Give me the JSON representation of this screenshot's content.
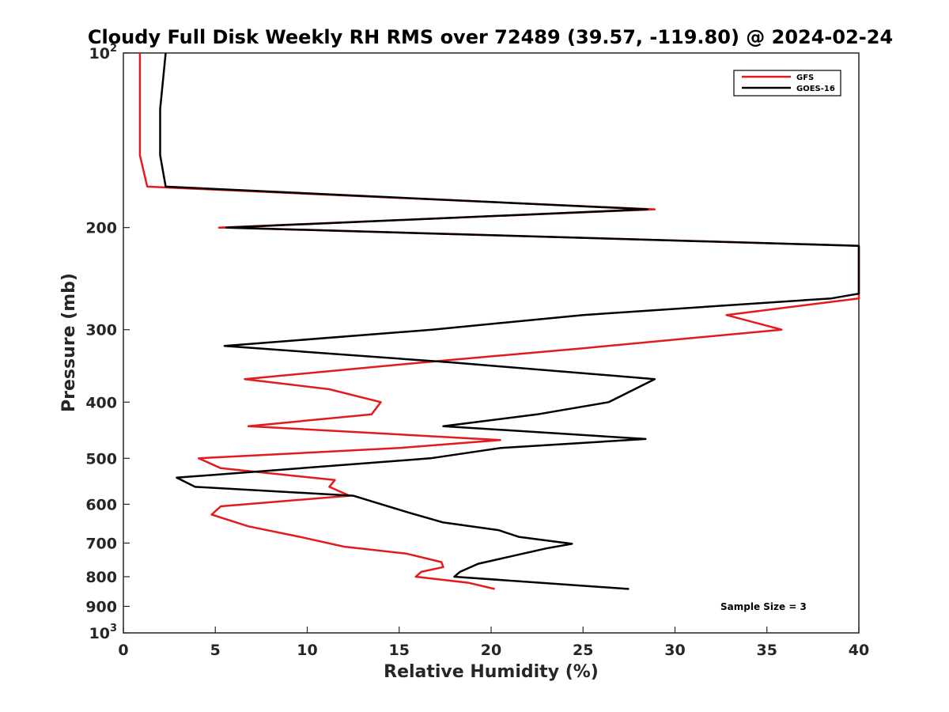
{
  "chart_data": {
    "type": "line",
    "title": "Cloudy Full Disk Weekly RH RMS over 72489 (39.57, -119.80) @ 2024-02-24",
    "xlabel": "Relative Humidity (%)",
    "ylabel": "Pressure (mb)",
    "xlim": [
      0,
      40
    ],
    "ylim": [
      100,
      1000
    ],
    "yscale": "log",
    "yreversed": true,
    "grid": false,
    "legend_position": "top-right",
    "x_ticks": [
      "0",
      "5",
      "10",
      "15",
      "20",
      "25",
      "30",
      "35",
      "40"
    ],
    "y_ticks": [
      {
        "value": 100,
        "base": "10",
        "exp": "2"
      },
      {
        "value": 200,
        "label": "200"
      },
      {
        "value": 300,
        "label": "300"
      },
      {
        "value": 400,
        "label": "400"
      },
      {
        "value": 500,
        "label": "500"
      },
      {
        "value": 600,
        "label": "600"
      },
      {
        "value": 700,
        "label": "700"
      },
      {
        "value": 800,
        "label": "800"
      },
      {
        "value": 900,
        "label": "900"
      },
      {
        "value": 1000,
        "base": "10",
        "exp": "3"
      }
    ],
    "annotation": "Sample Size = 3",
    "series": [
      {
        "name": "GFS",
        "color": "#e41a1c",
        "points": [
          [
            0.9,
            100
          ],
          [
            0.9,
            125
          ],
          [
            0.9,
            150
          ],
          [
            1.3,
            170
          ],
          [
            28.9,
            186
          ],
          [
            5.2,
            200
          ],
          [
            5.8,
            200
          ],
          [
            40,
            215
          ],
          [
            40,
            265
          ],
          [
            32.8,
            283
          ],
          [
            35.8,
            300
          ],
          [
            25,
            323
          ],
          [
            17,
            340
          ],
          [
            6.6,
            365
          ],
          [
            11.2,
            380
          ],
          [
            14,
            400
          ],
          [
            13.5,
            420
          ],
          [
            6.8,
            440
          ],
          [
            20.5,
            465
          ],
          [
            15,
            480
          ],
          [
            4.1,
            500
          ],
          [
            5.3,
            520
          ],
          [
            11.5,
            545
          ],
          [
            11.2,
            560
          ],
          [
            12.3,
            580
          ],
          [
            5.3,
            605
          ],
          [
            4.8,
            625
          ],
          [
            6.8,
            655
          ],
          [
            9.6,
            683
          ],
          [
            12,
            710
          ],
          [
            15.4,
            730
          ],
          [
            17.3,
            755
          ],
          [
            17.4,
            770
          ],
          [
            16.2,
            785
          ],
          [
            15.9,
            800
          ],
          [
            18.8,
            820
          ],
          [
            20.2,
            840
          ]
        ]
      },
      {
        "name": "GOES-16",
        "color": "#000000",
        "points": [
          [
            2.3,
            100
          ],
          [
            2.0,
            125
          ],
          [
            2.0,
            150
          ],
          [
            2.3,
            170
          ],
          [
            28.5,
            186
          ],
          [
            5.6,
            200
          ],
          [
            40,
            215
          ],
          [
            40,
            260
          ],
          [
            38.5,
            265
          ],
          [
            25,
            283
          ],
          [
            16.8,
            300
          ],
          [
            5.5,
            320
          ],
          [
            18,
            342
          ],
          [
            28.9,
            365
          ],
          [
            27.8,
            380
          ],
          [
            26.4,
            400
          ],
          [
            22.5,
            420
          ],
          [
            17.4,
            440
          ],
          [
            28.4,
            463
          ],
          [
            20.5,
            480
          ],
          [
            16.7,
            500
          ],
          [
            2.9,
            540
          ],
          [
            3.9,
            560
          ],
          [
            12.5,
            580
          ],
          [
            15.5,
            620
          ],
          [
            17.4,
            645
          ],
          [
            20.4,
            665
          ],
          [
            21.5,
            683
          ],
          [
            24.4,
            702
          ],
          [
            23,
            715
          ],
          [
            19.3,
            760
          ],
          [
            18.3,
            785
          ],
          [
            18,
            800
          ],
          [
            27.5,
            840
          ]
        ]
      }
    ]
  }
}
